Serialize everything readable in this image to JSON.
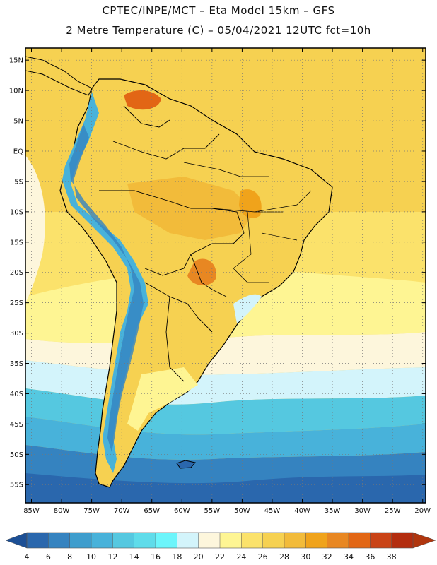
{
  "header": {
    "line1": "CPTEC/INPE/MCT –  Eta Model 15km – GFS",
    "line2": "2 Metre Temperature (C) – 05/04/2021 12UTC fct=10h"
  },
  "map": {
    "lon_range": [
      -86,
      -19.5
    ],
    "lat_range": [
      -58,
      17
    ],
    "lat_ticks": [
      {
        "value": 15,
        "label": "15N"
      },
      {
        "value": 10,
        "label": "10N"
      },
      {
        "value": 5,
        "label": "5N"
      },
      {
        "value": 0,
        "label": "EQ"
      },
      {
        "value": -5,
        "label": "5S"
      },
      {
        "value": -10,
        "label": "10S"
      },
      {
        "value": -15,
        "label": "15S"
      },
      {
        "value": -20,
        "label": "20S"
      },
      {
        "value": -25,
        "label": "25S"
      },
      {
        "value": -30,
        "label": "30S"
      },
      {
        "value": -35,
        "label": "35S"
      },
      {
        "value": -40,
        "label": "40S"
      },
      {
        "value": -45,
        "label": "45S"
      },
      {
        "value": -50,
        "label": "50S"
      },
      {
        "value": -55,
        "label": "55S"
      }
    ],
    "lon_ticks": [
      {
        "value": -85,
        "label": "85W"
      },
      {
        "value": -80,
        "label": "80W"
      },
      {
        "value": -75,
        "label": "75W"
      },
      {
        "value": -70,
        "label": "70W"
      },
      {
        "value": -65,
        "label": "65W"
      },
      {
        "value": -60,
        "label": "60W"
      },
      {
        "value": -55,
        "label": "55W"
      },
      {
        "value": -50,
        "label": "50W"
      },
      {
        "value": -45,
        "label": "45W"
      },
      {
        "value": -40,
        "label": "40W"
      },
      {
        "value": -35,
        "label": "35W"
      },
      {
        "value": -30,
        "label": "30W"
      },
      {
        "value": -25,
        "label": "25W"
      },
      {
        "value": -20,
        "label": "20W"
      }
    ]
  },
  "colorbar": {
    "ticks": [
      "4",
      "6",
      "8",
      "10",
      "12",
      "14",
      "16",
      "18",
      "20",
      "22",
      "24",
      "26",
      "28",
      "30",
      "32",
      "34",
      "36",
      "38"
    ],
    "colors": [
      "#2a67ad",
      "#3583c0",
      "#3e9dcd",
      "#48b2da",
      "#55c8e0",
      "#5fdcea",
      "#6cf5fb",
      "#d3f4fb",
      "#fdf6dc",
      "#fef593",
      "#fbe26b",
      "#f6d151",
      "#f2bb3a",
      "#f0a31b",
      "#e88722",
      "#e26615",
      "#c94316",
      "#b32d0f"
    ],
    "under_color": "#1c4f95",
    "over_color": "#b0360e"
  }
}
